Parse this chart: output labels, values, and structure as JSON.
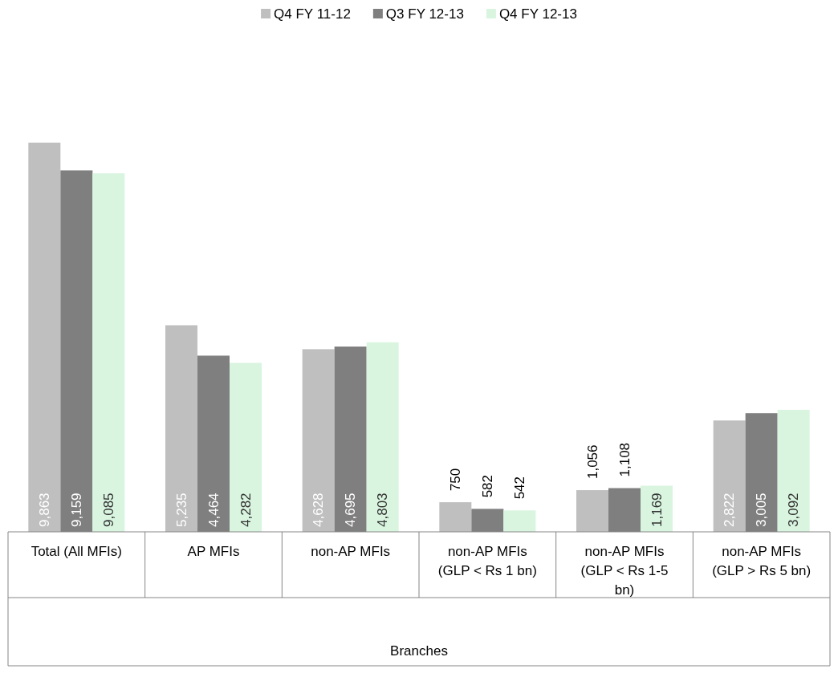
{
  "chart_data": {
    "type": "bar",
    "xlabel": "Branches",
    "categories": [
      "Total (All MFIs)",
      "AP MFIs",
      "non-AP MFIs",
      "non-AP MFIs (GLP < Rs 1 bn)",
      "non-AP MFIs (GLP < Rs 1-5 bn)",
      "non-AP MFIs (GLP > Rs 5 bn)"
    ],
    "series": [
      {
        "name": "Q4 FY 11-12",
        "color": "#bfbfbf",
        "values": [
          9863,
          5235,
          4628,
          750,
          1056,
          2822
        ],
        "value_labels": [
          "9,863",
          "5,235",
          "4,628",
          "750",
          "1,056",
          "2,822"
        ]
      },
      {
        "name": "Q3 FY 12-13",
        "color": "#7f7f7f",
        "values": [
          9159,
          4464,
          4695,
          582,
          1108,
          3005
        ],
        "value_labels": [
          "9,159",
          "4,464",
          "4,695",
          "582",
          "1,108",
          "3,005"
        ]
      },
      {
        "name": "Q4 FY 12-13",
        "color": "#d9f5e0",
        "values": [
          9085,
          4282,
          4803,
          542,
          1169,
          3092
        ],
        "value_labels": [
          "9,085",
          "4,282",
          "4,803",
          "542",
          "1,169",
          "3,092"
        ]
      }
    ],
    "legend": "top"
  }
}
